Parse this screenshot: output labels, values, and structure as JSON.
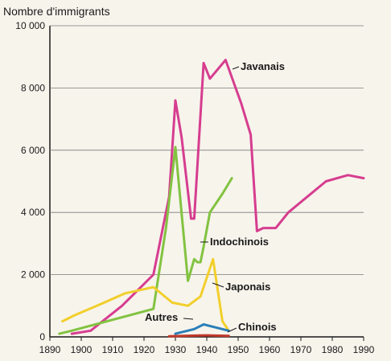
{
  "chart_data": {
    "type": "line",
    "title": "",
    "ylabel": "Nombre d'immigrants",
    "xlabel": "",
    "xlim": [
      1890,
      1990
    ],
    "ylim": [
      0,
      10000
    ],
    "x_ticks": [
      1890,
      1900,
      1910,
      1920,
      1930,
      1940,
      1950,
      1960,
      1970,
      1980,
      1990
    ],
    "y_ticks": [
      0,
      2000,
      4000,
      6000,
      8000,
      10000
    ],
    "y_tick_labels": [
      "0",
      "2 000",
      "4 000",
      "6 000",
      "8 000",
      "10 000"
    ],
    "grid": "horizontal",
    "series": [
      {
        "name": "Javanais",
        "color": "#d63d8f",
        "points": [
          [
            1897,
            100
          ],
          [
            1903,
            200
          ],
          [
            1913,
            1000
          ],
          [
            1923,
            2000
          ],
          [
            1928,
            4500
          ],
          [
            1930,
            7600
          ],
          [
            1932,
            6400
          ],
          [
            1935,
            3800
          ],
          [
            1936,
            3800
          ],
          [
            1939,
            8800
          ],
          [
            1941,
            8300
          ],
          [
            1946,
            8900
          ],
          [
            1951,
            7500
          ],
          [
            1954,
            6500
          ],
          [
            1956,
            3400
          ],
          [
            1958,
            3500
          ],
          [
            1962,
            3500
          ],
          [
            1966,
            4000
          ],
          [
            1972,
            4500
          ],
          [
            1978,
            5000
          ],
          [
            1985,
            5200
          ],
          [
            1990,
            5100
          ]
        ]
      },
      {
        "name": "Indochinois",
        "color": "#82c341",
        "points": [
          [
            1893,
            100
          ],
          [
            1897,
            200
          ],
          [
            1923,
            900
          ],
          [
            1927,
            3500
          ],
          [
            1930,
            6100
          ],
          [
            1934,
            1800
          ],
          [
            1936,
            2500
          ],
          [
            1937,
            2400
          ],
          [
            1938,
            2400
          ],
          [
            1939,
            2900
          ],
          [
            1941,
            4000
          ],
          [
            1945,
            4600
          ],
          [
            1948,
            5100
          ]
        ]
      },
      {
        "name": "Japonais",
        "color": "#f2cf2c",
        "points": [
          [
            1894,
            500
          ],
          [
            1898,
            700
          ],
          [
            1905,
            1000
          ],
          [
            1914,
            1400
          ],
          [
            1923,
            1600
          ],
          [
            1929,
            1100
          ],
          [
            1934,
            1000
          ],
          [
            1938,
            1300
          ],
          [
            1942,
            2500
          ],
          [
            1945,
            500
          ],
          [
            1947,
            200
          ]
        ]
      },
      {
        "name": "Autres",
        "color": "#2a7fb8",
        "points": [
          [
            1930,
            100
          ],
          [
            1936,
            250
          ],
          [
            1939,
            400
          ],
          [
            1943,
            300
          ],
          [
            1947,
            200
          ]
        ]
      },
      {
        "name": "Chinois",
        "color": "#c0392b",
        "points": [
          [
            1928,
            20
          ],
          [
            1935,
            40
          ],
          [
            1940,
            50
          ],
          [
            1947,
            30
          ]
        ]
      }
    ]
  }
}
